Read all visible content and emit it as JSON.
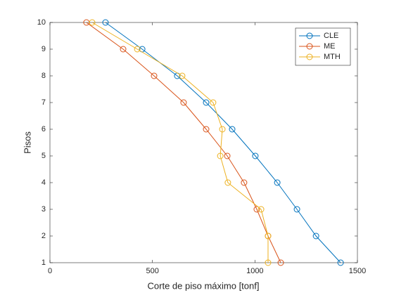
{
  "chart_data": {
    "type": "line",
    "xlabel": "Corte de piso máximo [tonf]",
    "ylabel": "Pisos",
    "y": [
      10,
      9,
      8,
      7,
      6,
      5,
      4,
      3,
      2,
      1
    ],
    "series": [
      {
        "name": "CLE",
        "color": "#0072BD",
        "values": [
          271,
          450,
          621,
          762,
          889,
          1002,
          1109,
          1205,
          1298,
          1418
        ]
      },
      {
        "name": "ME",
        "color": "#D95319",
        "values": [
          178,
          357,
          508,
          652,
          762,
          865,
          947,
          1009,
          1064,
          1126
        ]
      },
      {
        "name": "MTH",
        "color": "#EDB120",
        "values": [
          206,
          426,
          645,
          796,
          841,
          831,
          868,
          1030,
          1064,
          1064
        ]
      }
    ],
    "xlim": [
      0,
      1500
    ],
    "xticks": [
      0,
      500,
      1000,
      1500
    ],
    "ylim": [
      1,
      10
    ],
    "yticks": [
      1,
      2,
      3,
      4,
      5,
      6,
      7,
      8,
      9,
      10
    ],
    "grid": false,
    "legend": "northeast"
  }
}
